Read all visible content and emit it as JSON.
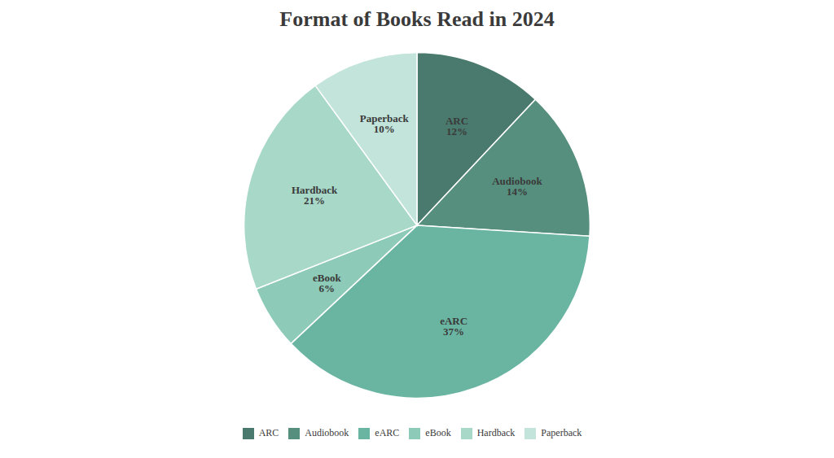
{
  "chart_data": {
    "type": "pie",
    "title": "Format of Books Read in 2024",
    "categories": [
      "ARC",
      "Audiobook",
      "eARC",
      "eBook",
      "Hardback",
      "Paperback"
    ],
    "values": [
      12,
      14,
      37,
      6,
      21,
      10
    ],
    "value_labels": [
      "12%",
      "14%",
      "37%",
      "6%",
      "21%",
      "10%"
    ],
    "colors": [
      "#4a7a6d",
      "#568f7e",
      "#6ab5a2",
      "#8dcab8",
      "#a8d8c8",
      "#c2e4da"
    ],
    "data_labels": true,
    "legend": "bottom"
  }
}
